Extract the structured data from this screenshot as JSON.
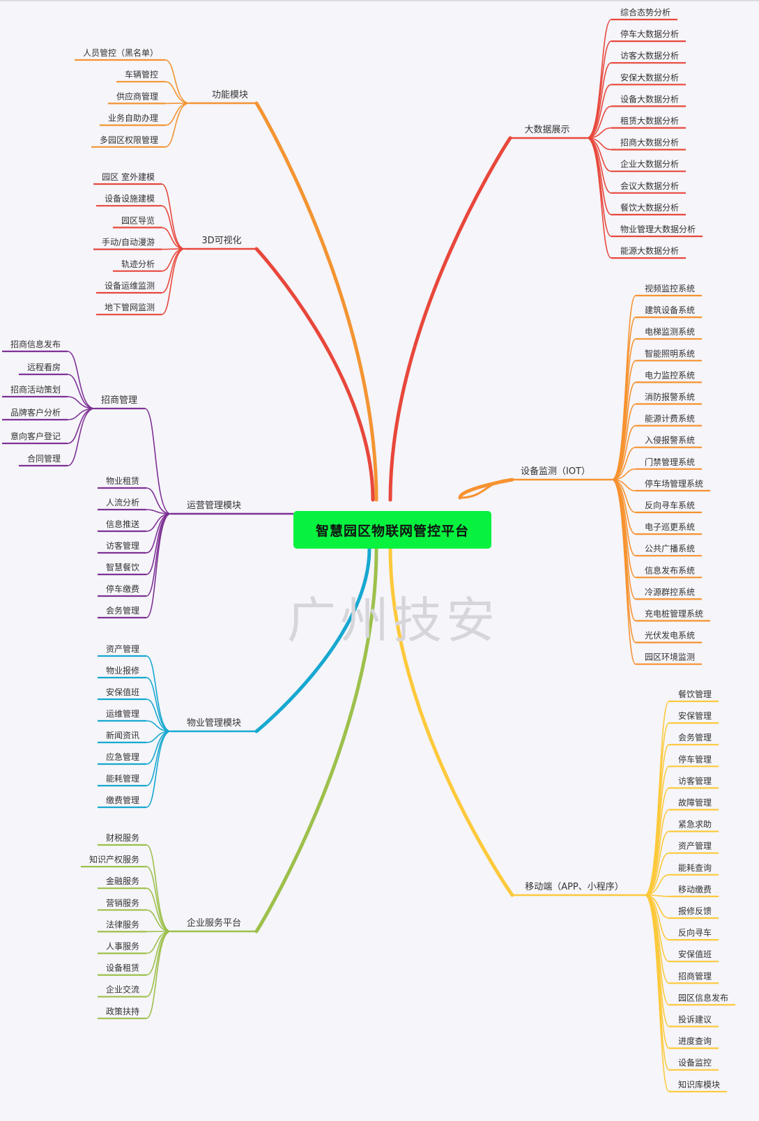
{
  "root": {
    "title": "智慧园区物联网管控平台",
    "color": "#06f23f"
  },
  "watermark": "广州技安",
  "branches": [
    {
      "label": "功能模块",
      "color": "#f39432",
      "children": [
        "人员管控（黑名单）",
        "车辆管控",
        "供应商管理",
        "业务自助办理",
        "多园区权限管理"
      ]
    },
    {
      "label": "3D可视化",
      "color": "#e8473b",
      "children": [
        "园区 室外建模",
        "设备设施建模",
        "园区导览",
        "手动/自动漫游",
        "轨迹分析",
        "设备运维监测",
        "地下管网监测"
      ]
    },
    {
      "label": "运营管理模块",
      "color": "#7e3194",
      "sub": {
        "label": "招商管理",
        "children": [
          "招商信息发布",
          "远程看房",
          "招商活动策划",
          "品牌客户分析",
          "意向客户登记",
          "合同管理"
        ]
      },
      "children": [
        "物业租赁",
        "人流分析",
        "信息推送",
        "访客管理",
        "智慧餐饮",
        "停车缴费",
        "会务管理"
      ]
    },
    {
      "label": "物业管理模块",
      "color": "#17a8d0",
      "children": [
        "资产管理",
        "物业报修",
        "安保值班",
        "运维管理",
        "新闻资讯",
        "应急管理",
        "能耗管理",
        "缴费管理"
      ]
    },
    {
      "label": "企业服务平台",
      "color": "#9dc04b",
      "children": [
        "财税服务",
        "知识产权服务",
        "金融服务",
        "营销服务",
        "法律服务",
        "人事服务",
        "设备租赁",
        "企业交流",
        "政策扶持"
      ]
    },
    {
      "label": "大数据展示",
      "color": "#e8473b",
      "children": [
        "综合态势分析",
        "停车大数据分析",
        "访客大数据分析",
        "安保大数据分析",
        "设备大数据分析",
        "租赁大数据分析",
        "招商大数据分析",
        "企业大数据分析",
        "会议大数据分析",
        "餐饮大数据分析",
        "物业管理大数据分析",
        "能源大数据分析"
      ]
    },
    {
      "label": "设备监测（IOT）",
      "color": "#f7922f",
      "children": [
        "视频监控系统",
        "建筑设备系统",
        "电梯监测系统",
        "智能照明系统",
        "电力监控系统",
        "消防报警系统",
        "能源计费系统",
        "入侵报警系统",
        "门禁管理系统",
        "停车场管理系统",
        "反向寻车系统",
        "电子巡更系统",
        "公共广播系统",
        "信息发布系统",
        "冷源群控系统",
        "充电桩管理系统",
        "光伏发电系统",
        "园区环境监测"
      ]
    },
    {
      "label": "移动端（APP、小程序）",
      "color": "#fdc93b",
      "children": [
        "餐饮管理",
        "安保管理",
        "会务管理",
        "停车管理",
        "访客管理",
        "故障管理",
        "紧急求助",
        "资产管理",
        "能耗查询",
        "移动缴费",
        "报修反馈",
        "反向寻车",
        "安保值班",
        "招商管理",
        "园区信息发布",
        "投诉建议",
        "进度查询",
        "设备监控",
        "知识库模块"
      ]
    }
  ]
}
